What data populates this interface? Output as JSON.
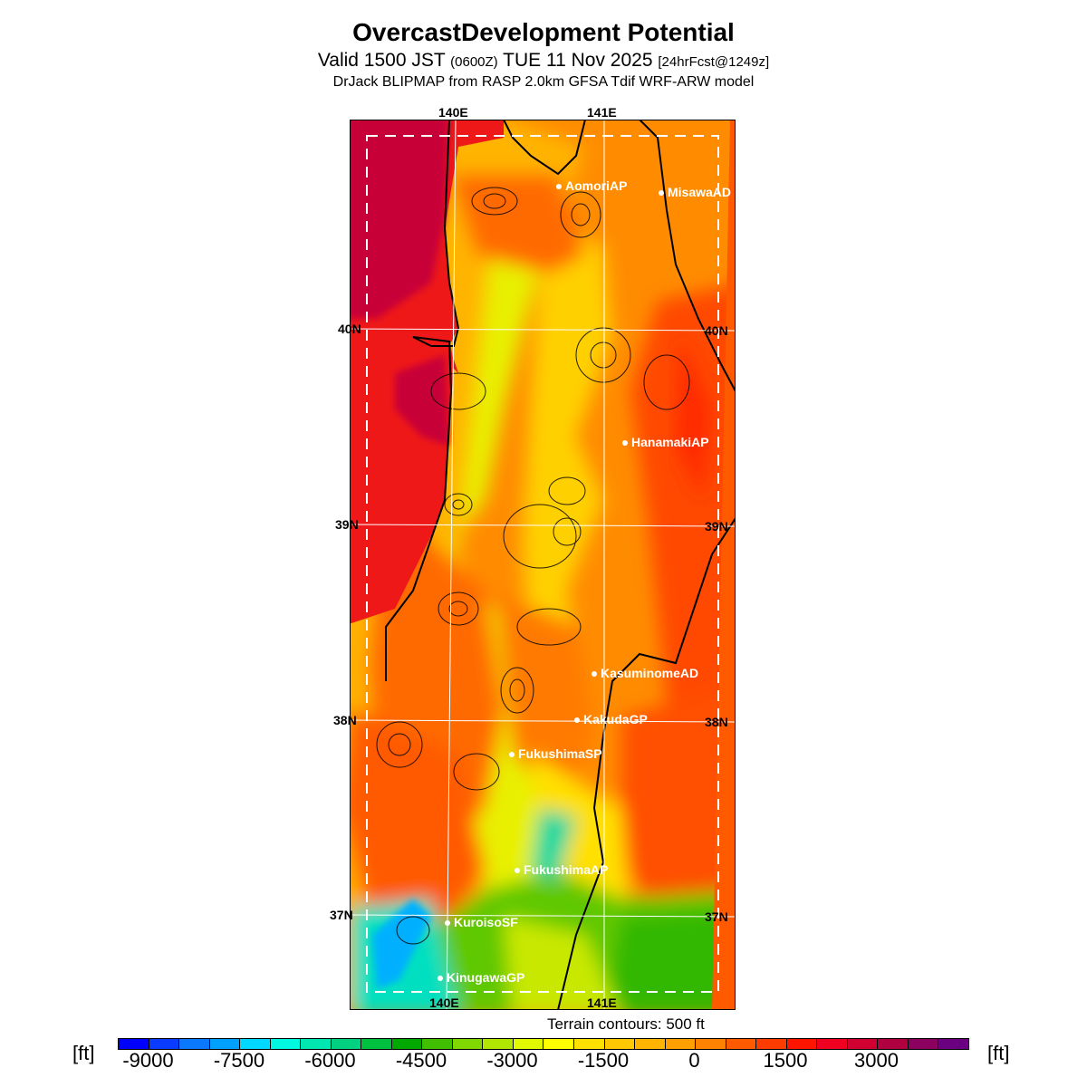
{
  "title": "OvercastDevelopment Potential",
  "subtitle": {
    "valid": "Valid 1500 JST",
    "utc": "(0600Z)",
    "date": "TUE 11 Nov 2025",
    "forecast": "[24hrFcst@1249z]"
  },
  "source": "DrJack BLIPMAP from RASP 2.0km GFSA Tdif WRF-ARW model",
  "map": {
    "lon_labels": [
      "140E",
      "141E"
    ],
    "lat_labels": [
      "40N",
      "39N",
      "38N",
      "37N"
    ],
    "stations": [
      "AomoriAP",
      "MisawaAD",
      "HanamakiAP",
      "KasuminomeAD",
      "KakudaGP",
      "FukushimaSP",
      "FukushimaAP",
      "KuroisoSF",
      "KinugawaGP"
    ],
    "contour_note": "Terrain contours: 500 ft"
  },
  "colorbar": {
    "unit": "[ft]",
    "ticks": [
      "-9000",
      "-7500",
      "-6000",
      "-4500",
      "-3000",
      "-1500",
      "0",
      "1500",
      "3000"
    ],
    "colors": [
      "#0000ff",
      "#0a3cff",
      "#0a78ff",
      "#00a0ff",
      "#00d8ff",
      "#00f8e0",
      "#00e6b0",
      "#00d080",
      "#00c040",
      "#00a800",
      "#40c000",
      "#80d800",
      "#b0e600",
      "#e0f800",
      "#ffff00",
      "#ffe000",
      "#ffc800",
      "#ffb400",
      "#ffa000",
      "#ff8200",
      "#ff5a00",
      "#ff3c00",
      "#ff1400",
      "#f00020",
      "#d00030",
      "#b00040",
      "#8c0060",
      "#6a0080"
    ]
  }
}
